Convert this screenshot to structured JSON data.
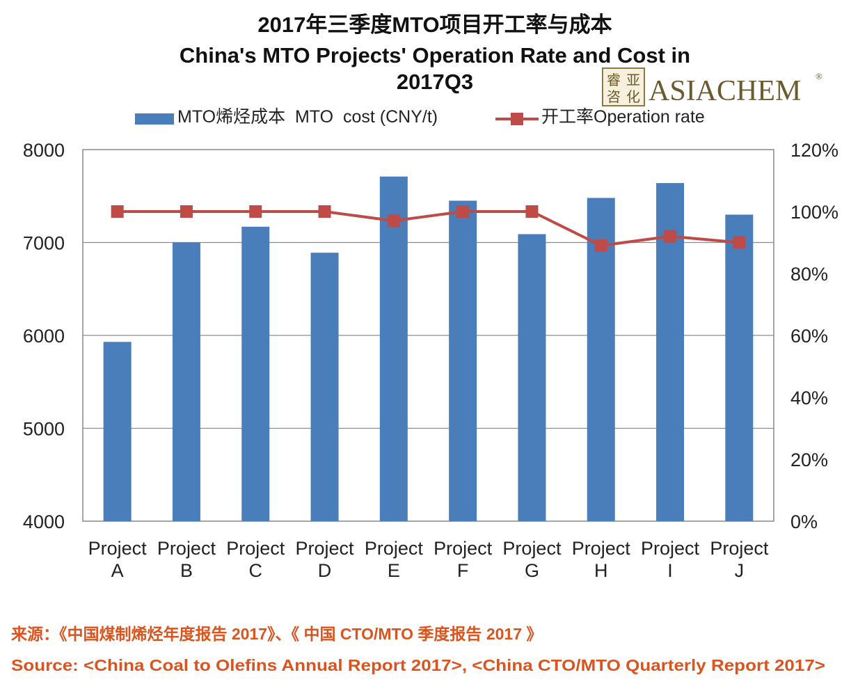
{
  "chart_data": {
    "type": "bar",
    "title_cn": "2017年三季度MTO项目开工率与成本",
    "title_en_line1": "China's MTO Projects' Operation Rate and Cost in",
    "title_en_line2": "2017Q3",
    "categories": [
      {
        "line1": "Project",
        "line2": "A"
      },
      {
        "line1": "Project",
        "line2": "B"
      },
      {
        "line1": "Project",
        "line2": "C"
      },
      {
        "line1": "Project",
        "line2": "D"
      },
      {
        "line1": "Project",
        "line2": "E"
      },
      {
        "line1": "Project",
        "line2": "F"
      },
      {
        "line1": "Project",
        "line2": "G"
      },
      {
        "line1": "Project",
        "line2": "H"
      },
      {
        "line1": "Project",
        "line2": "I"
      },
      {
        "line1": "Project",
        "line2": "J"
      }
    ],
    "series": [
      {
        "name": "MTO烯烃成本  MTO  cost (CNY/t)",
        "kind": "bar",
        "axis": "left",
        "color": "#4a7ebb",
        "values": [
          5930,
          7000,
          7170,
          6890,
          7710,
          7450,
          7090,
          7480,
          7640,
          7300
        ]
      },
      {
        "name": "开工率Operation rate",
        "kind": "line",
        "axis": "right",
        "color": "#be4b48",
        "values": [
          100,
          100,
          100,
          100,
          97,
          100,
          100,
          89,
          92,
          90
        ]
      }
    ],
    "y_left": {
      "min": 4000,
      "max": 8000,
      "ticks": [
        "4000",
        "5000",
        "6000",
        "7000",
        "8000"
      ]
    },
    "y_right": {
      "min": 0,
      "max": 120,
      "ticks": [
        "0%",
        "20%",
        "40%",
        "60%",
        "80%",
        "100%",
        "120%"
      ]
    },
    "grid": true,
    "legend_position": "top"
  },
  "logo": {
    "cn_chars": [
      "睿",
      "亚",
      "咨",
      "化"
    ],
    "text": "ASIACHEM",
    "mark": "®"
  },
  "source_cn": "来源：《中国煤制烯烃年度报告 2017》、《 中国 CTO/MTO 季度报告 2017 》",
  "source_en": "Source: <China Coal to Olefins Annual Report 2017>, <China CTO/MTO Quarterly Report 2017>"
}
